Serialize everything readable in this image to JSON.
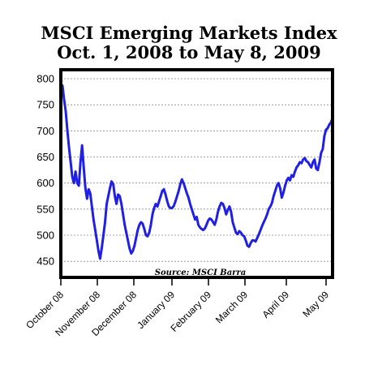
{
  "chart_data": {
    "type": "line",
    "title": "MSCI Emerging Markets Index",
    "subtitle": "Oct. 1, 2008 to May 8, 2009",
    "source": "Source: MSCI Barra",
    "xlabel": "",
    "ylabel": "",
    "ylim": [
      420,
      825
    ],
    "yticks": [
      450,
      500,
      550,
      600,
      650,
      700,
      750,
      800
    ],
    "grid": true,
    "line_color": "#1f1fe6",
    "xtick_labels": [
      "October 08",
      "November 08",
      "December 08",
      "January 09",
      "February 09",
      "March 09",
      "April 09",
      "May 09"
    ],
    "series": [
      {
        "values": [
          787,
          760,
          738,
          700,
          668,
          640,
          612,
          600,
          622,
          600,
          595,
          640,
          672,
          630,
          590,
          570,
          588,
          580,
          555,
          530,
          510,
          490,
          470,
          455,
          475,
          500,
          525,
          560,
          575,
          590,
          603,
          598,
          575,
          560,
          578,
          575,
          560,
          540,
          520,
          505,
          490,
          475,
          465,
          470,
          480,
          495,
          510,
          520,
          525,
          522,
          512,
          500,
          498,
          505,
          520,
          540,
          552,
          560,
          555,
          565,
          575,
          585,
          588,
          578,
          565,
          555,
          552,
          552,
          556,
          565,
          575,
          585,
          598,
          607,
          600,
          590,
          580,
          572,
          560,
          550,
          540,
          530,
          535,
          520,
          515,
          512,
          510,
          513,
          520,
          528,
          532,
          530,
          525,
          520,
          530,
          545,
          555,
          562,
          560,
          552,
          540,
          548,
          555,
          545,
          525,
          515,
          505,
          502,
          508,
          505,
          500,
          498,
          490,
          480,
          478,
          485,
          490,
          490,
          488,
          495,
          502,
          510,
          518,
          525,
          532,
          540,
          550,
          555,
          562,
          575,
          585,
          595,
          600,
          590,
          572,
          582,
          595,
          605,
          610,
          605,
          615,
          612,
          622,
          630,
          634,
          640,
          638,
          645,
          648,
          642,
          640,
          635,
          630,
          640,
          645,
          628,
          625,
          640,
          658,
          665,
          690,
          702,
          705,
          712,
          716,
          725
        ]
      }
    ]
  }
}
